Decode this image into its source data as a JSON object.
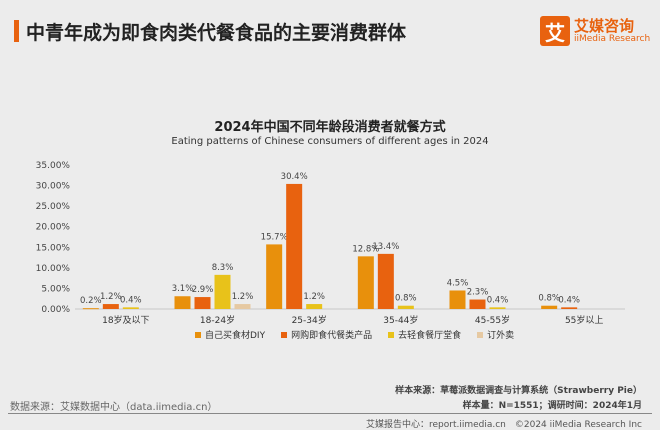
{
  "header": {
    "title": "中青年成为即食肉类代餐食品的主要消费群体",
    "logo_mark": "艾",
    "logo_cn": "艾媒咨询",
    "logo_en": "iiMedia Research"
  },
  "chart_data": {
    "type": "bar",
    "title": "2024年中国不同年龄段消费者就餐方式",
    "subtitle": "Eating patterns of Chinese consumers of different ages in 2024",
    "categories": [
      "18岁及以下",
      "18-24岁",
      "25-34岁",
      "35-44岁",
      "45-55岁",
      "55岁以上"
    ],
    "ylim": [
      0,
      35
    ],
    "yticks": [
      "0.00%",
      "5.00%",
      "10.00%",
      "15.00%",
      "20.00%",
      "25.00%",
      "30.00%",
      "35.00%"
    ],
    "legend_position": "bottom",
    "series": [
      {
        "name": "自己买食材DIY",
        "color": "#e8900c",
        "values": [
          0.2,
          3.1,
          15.7,
          12.8,
          4.5,
          0.8
        ]
      },
      {
        "name": "网购即食代餐类产品",
        "color": "#e8620f",
        "values": [
          1.2,
          2.9,
          30.4,
          13.4,
          2.3,
          0.4
        ]
      },
      {
        "name": "去轻食餐厅堂食",
        "color": "#e8c21a",
        "values": [
          0.4,
          8.3,
          1.2,
          0.8,
          0.4,
          null
        ]
      },
      {
        "name": "订外卖",
        "color": "#e6c9a2",
        "values": [
          null,
          1.2,
          null,
          null,
          null,
          null
        ]
      }
    ]
  },
  "footer": {
    "sample_source": "样本来源：草莓派数据调查与计算系统（Strawberry Pie）",
    "sample_info": "样本量：N=1551；调研时间：2024年1月",
    "data_source": "数据来源：艾媒数据中心（data.iimedia.cn）",
    "report": "艾媒报告中心：report.iimedia.cn　©2024 iiMedia Research Inc"
  }
}
